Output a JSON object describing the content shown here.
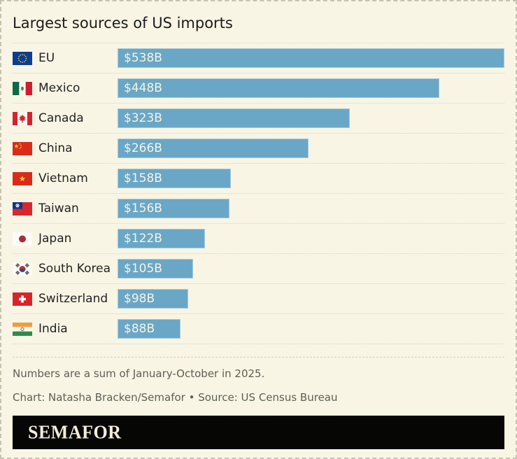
{
  "title": "Largest sources of US imports",
  "chart_data": {
    "type": "bar",
    "orientation": "horizontal",
    "title": "Largest sources of US imports",
    "unit": "USD billions",
    "max_value": 538,
    "bar_color": "#6aa7c6",
    "categories": [
      "EU",
      "Mexico",
      "Canada",
      "China",
      "Vietnam",
      "Taiwan",
      "Japan",
      "South Korea",
      "Switzerland",
      "India"
    ],
    "values": [
      538,
      448,
      323,
      266,
      158,
      156,
      122,
      105,
      98,
      88
    ],
    "value_labels": [
      "$538B",
      "$448B",
      "$323B",
      "$266B",
      "$158B",
      "$156B",
      "$122B",
      "$105B",
      "$98B",
      "$88B"
    ],
    "flag_icons": [
      "eu-flag-icon",
      "mexico-flag-icon",
      "canada-flag-icon",
      "china-flag-icon",
      "vietnam-flag-icon",
      "taiwan-flag-icon",
      "japan-flag-icon",
      "south-korea-flag-icon",
      "switzerland-flag-icon",
      "india-flag-icon"
    ]
  },
  "notes": {
    "line1": "Numbers are a sum of January-October in 2025.",
    "line2": "Chart: Natasha Bracken/Semafor • Source: US Census Bureau"
  },
  "footer": {
    "logo_text": "SEMAFOR"
  },
  "colors": {
    "background": "#f8f5e4",
    "bar": "#6aa7c6",
    "bar_value_text": "#f6f3e2",
    "title_text": "#1b1b1b",
    "note_text": "#5f5e55",
    "banner_background": "#060605",
    "banner_text": "#f2edd8",
    "separator": "#d8d4be"
  }
}
